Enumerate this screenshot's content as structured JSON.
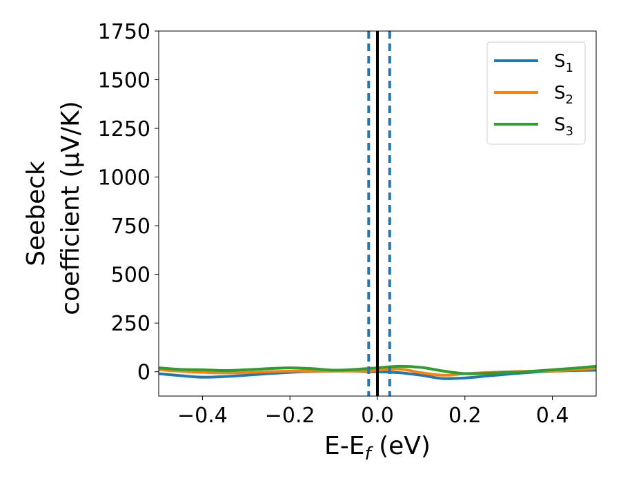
{
  "chart_data": {
    "type": "line",
    "xlabel": "E-E",
    "xlabel_sub": "f",
    "xlabel_unit": " (eV)",
    "ylabel_line1": "Seebeck",
    "ylabel_line2": "coefficient  (μV/K)",
    "xlim": [
      -0.5,
      0.5
    ],
    "ylim": [
      -125,
      1750
    ],
    "xticks": [
      -0.4,
      -0.2,
      0.0,
      0.2,
      0.4
    ],
    "xtick_labels": [
      "−0.4",
      "−0.2",
      "0.0",
      "0.2",
      "0.4"
    ],
    "yticks": [
      0,
      250,
      500,
      750,
      1000,
      1250,
      1500,
      1750
    ],
    "ytick_labels": [
      "0",
      "250",
      "500",
      "750",
      "1000",
      "1250",
      "1500",
      "1750"
    ],
    "grid": false,
    "legend_position": "top-right",
    "vertical_lines": [
      {
        "x": -0.02,
        "style": "dashed",
        "color": "#1f77b4"
      },
      {
        "x": 0.0,
        "style": "solid",
        "color": "#000000"
      },
      {
        "x": 0.028,
        "style": "dashed",
        "color": "#1f77b4"
      }
    ],
    "x": [
      -0.5,
      -0.45,
      -0.4,
      -0.35,
      -0.3,
      -0.25,
      -0.2,
      -0.15,
      -0.1,
      -0.05,
      0.0,
      0.05,
      0.1,
      0.15,
      0.2,
      0.25,
      0.3,
      0.35,
      0.4,
      0.45,
      0.5
    ],
    "series": [
      {
        "name": "S",
        "name_sub": "1",
        "color": "#1f77b4",
        "values": [
          -10,
          -20,
          -28,
          -25,
          -18,
          -10,
          -3,
          2,
          4,
          3,
          0,
          -5,
          -18,
          -35,
          -32,
          -22,
          -12,
          -3,
          3,
          6,
          8
        ]
      },
      {
        "name": "S",
        "name_sub": "2",
        "color": "#ff7f0e",
        "values": [
          10,
          3,
          -3,
          -6,
          -4,
          0,
          3,
          5,
          6,
          4,
          8,
          14,
          -5,
          -18,
          -10,
          -4,
          0,
          2,
          5,
          10,
          18
        ]
      },
      {
        "name": "S",
        "name_sub": "3",
        "color": "#2ca02c",
        "values": [
          20,
          12,
          10,
          6,
          10,
          16,
          20,
          16,
          8,
          12,
          20,
          28,
          22,
          4,
          -10,
          -8,
          -4,
          2,
          10,
          18,
          28
        ]
      }
    ]
  }
}
